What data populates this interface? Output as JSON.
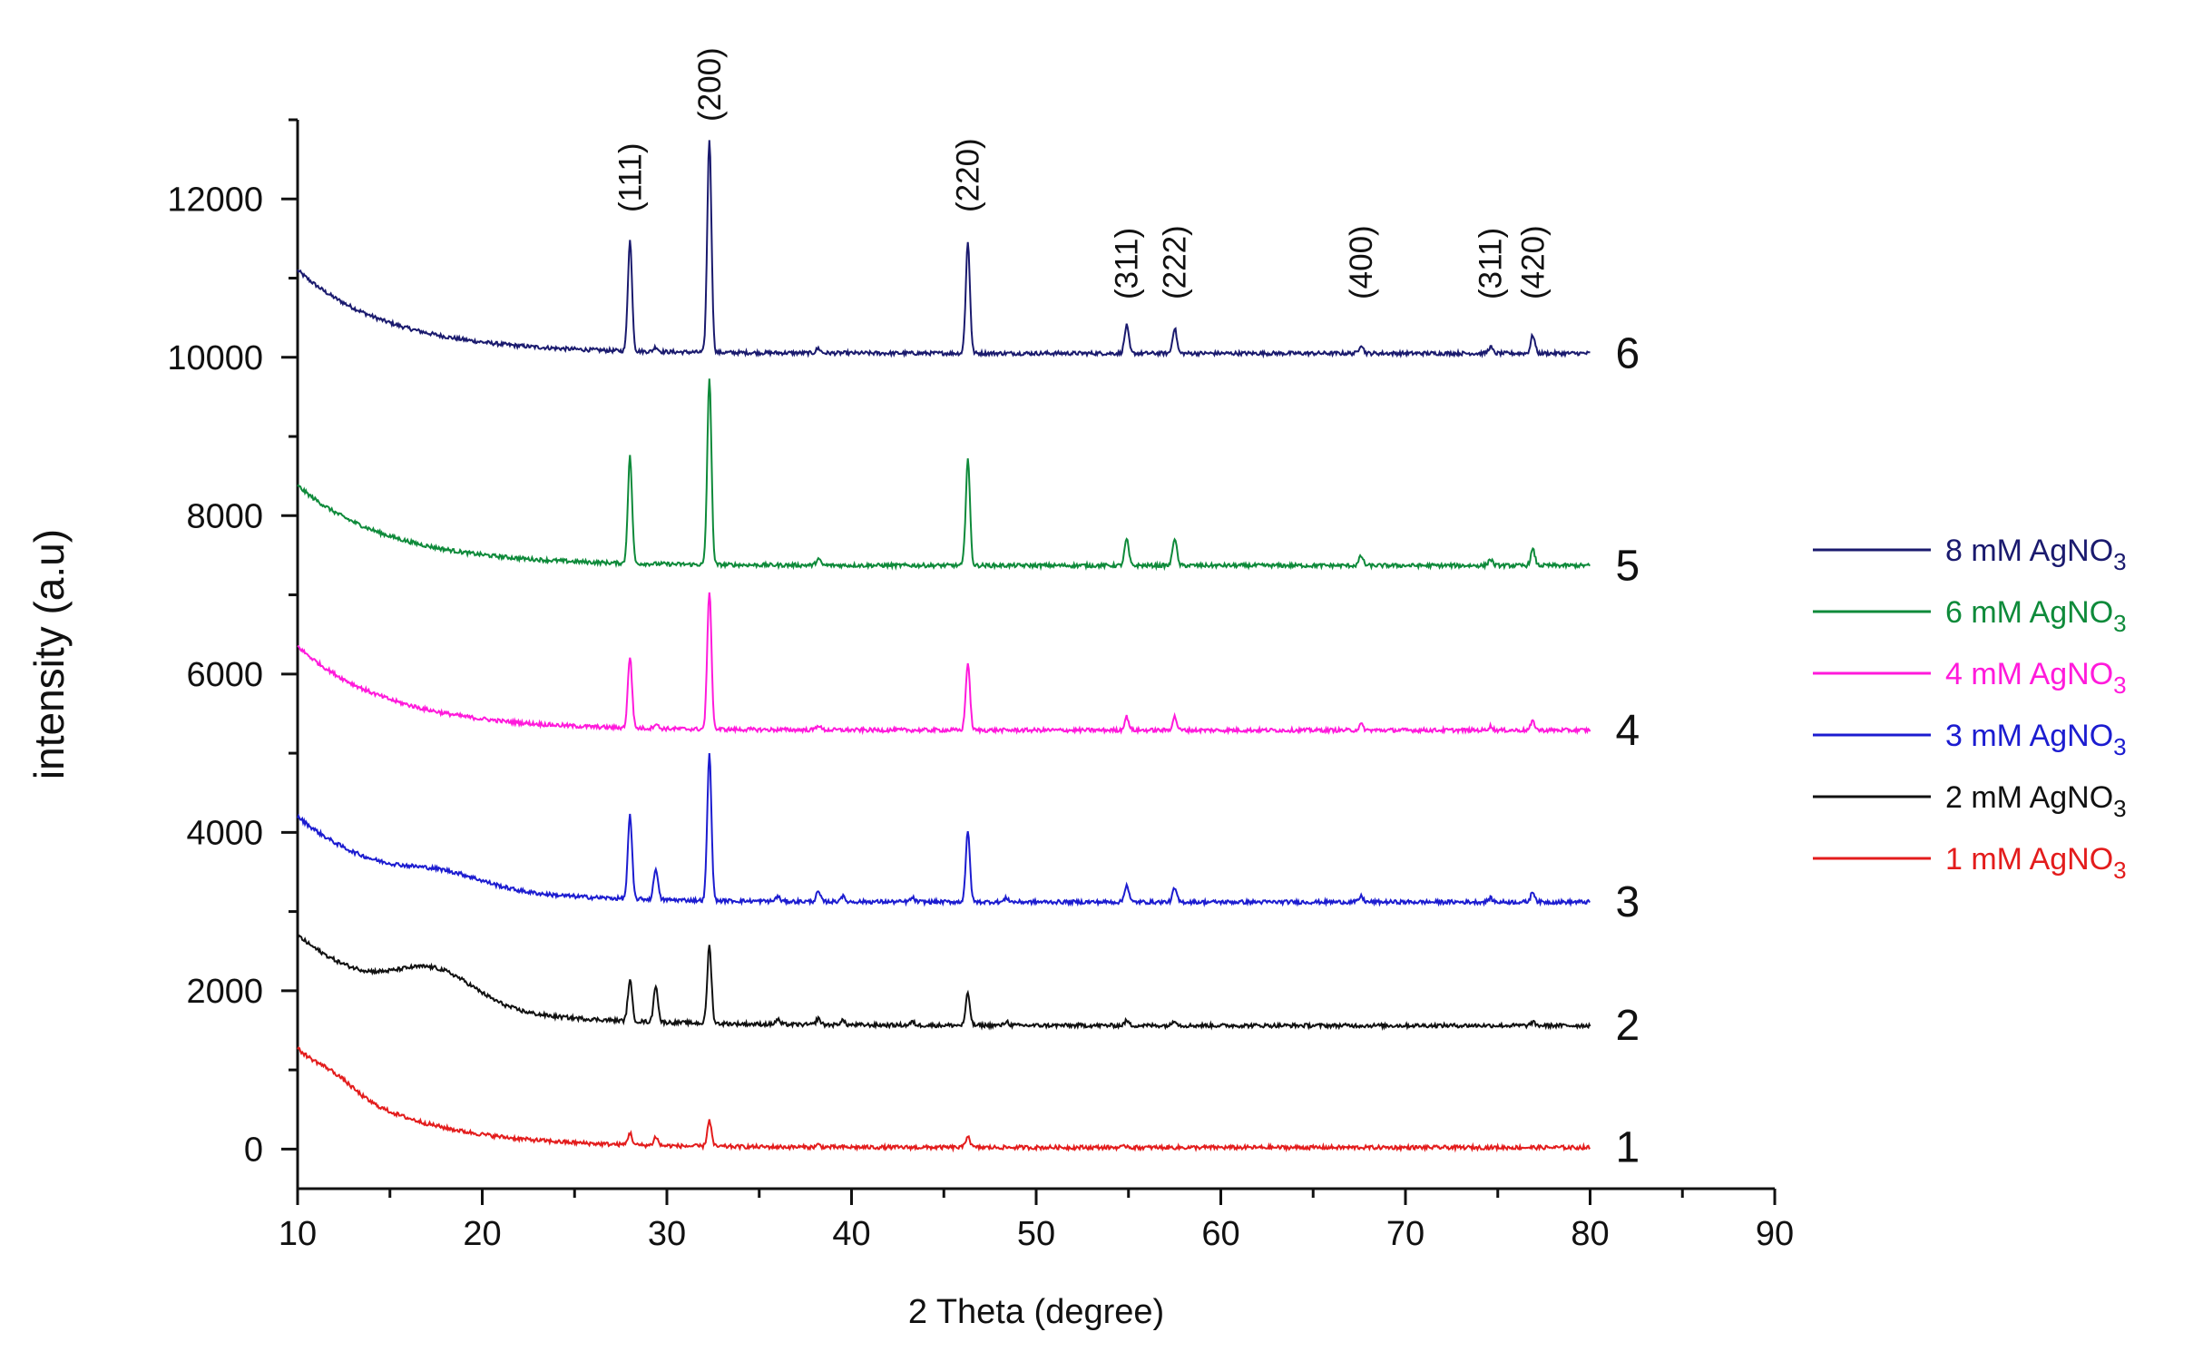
{
  "chart_data": {
    "type": "line",
    "title": "",
    "xlabel": "2 Theta (degree)",
    "ylabel": "intensity (a.u)",
    "xlim": [
      10,
      90
    ],
    "ylim": [
      -500,
      13000
    ],
    "x_ticks": [
      10,
      20,
      30,
      40,
      50,
      60,
      70,
      80,
      90
    ],
    "y_ticks": [
      0,
      2000,
      4000,
      6000,
      8000,
      10000,
      12000
    ],
    "grid": false,
    "legend_position": "right",
    "peak_labels": [
      {
        "text": "(111)",
        "x": 28.0
      },
      {
        "text": "(200)",
        "x": 32.3
      },
      {
        "text": "(220)",
        "x": 46.3
      },
      {
        "text": "(311)",
        "x": 54.9
      },
      {
        "text": "(222)",
        "x": 57.5
      },
      {
        "text": "(400)",
        "x": 67.6
      },
      {
        "text": "(311)",
        "x": 74.6
      },
      {
        "text": "(420)",
        "x": 76.9
      }
    ],
    "series": [
      {
        "name": "8 mM AgNO3",
        "legend_main": "8 mM AgNO",
        "legend_sub": "3",
        "curve_label": "6",
        "color": "#1a1a6e",
        "baseline": 10050,
        "start": 11100,
        "decay": 5.0,
        "peaks": [
          [
            28.0,
            1400
          ],
          [
            29.4,
            60
          ],
          [
            32.3,
            2700
          ],
          [
            38.2,
            60
          ],
          [
            46.3,
            1400
          ],
          [
            54.9,
            350
          ],
          [
            57.5,
            320
          ],
          [
            67.6,
            110
          ],
          [
            74.6,
            80
          ],
          [
            76.9,
            230
          ]
        ]
      },
      {
        "name": "6 mM AgNO3",
        "legend_main": "6 mM AgNO",
        "legend_sub": "3",
        "curve_label": "5",
        "color": "#0e8a3a",
        "baseline": 7370,
        "start": 8380,
        "decay": 5.0,
        "peaks": [
          [
            28.0,
            1350
          ],
          [
            32.3,
            2350
          ],
          [
            38.2,
            80
          ],
          [
            46.3,
            1350
          ],
          [
            54.9,
            330
          ],
          [
            57.5,
            350
          ],
          [
            67.6,
            120
          ],
          [
            74.6,
            80
          ],
          [
            76.9,
            200
          ]
        ]
      },
      {
        "name": "4 mM AgNO3",
        "legend_main": "4 mM AgNO",
        "legend_sub": "3",
        "curve_label": "4",
        "color": "#ff1adb",
        "baseline": 5290,
        "start": 6350,
        "decay": 5.0,
        "peaks": [
          [
            28.0,
            900
          ],
          [
            29.4,
            60
          ],
          [
            32.3,
            1750
          ],
          [
            38.2,
            60
          ],
          [
            46.3,
            850
          ],
          [
            54.9,
            170
          ],
          [
            57.5,
            170
          ],
          [
            67.6,
            70
          ],
          [
            74.6,
            50
          ],
          [
            76.9,
            110
          ]
        ]
      },
      {
        "name": "3 mM AgNO3",
        "legend_main": "3 mM AgNO",
        "legend_sub": "3",
        "curve_label": "3",
        "color": "#1c1cd0",
        "baseline": 3120,
        "start": 4200,
        "decay": 5.5,
        "hump": [
          18.0,
          150,
          3.0
        ],
        "peaks": [
          [
            28.0,
            1050
          ],
          [
            29.4,
            400
          ],
          [
            32.3,
            1850
          ],
          [
            36.0,
            60
          ],
          [
            38.2,
            120
          ],
          [
            39.5,
            70
          ],
          [
            43.3,
            50
          ],
          [
            46.3,
            880
          ],
          [
            48.4,
            50
          ],
          [
            54.9,
            220
          ],
          [
            57.5,
            170
          ],
          [
            67.6,
            70
          ],
          [
            74.6,
            50
          ],
          [
            76.9,
            130
          ]
        ]
      },
      {
        "name": "2 mM AgNO3",
        "legend_main": "2 mM AgNO",
        "legend_sub": "3",
        "curve_label": "2",
        "color": "#111111",
        "baseline": 1560,
        "start": 2700,
        "decay": 6.0,
        "hump": [
          17.5,
          400,
          3.0
        ],
        "peaks": [
          [
            28.0,
            520
          ],
          [
            29.4,
            470
          ],
          [
            32.3,
            980
          ],
          [
            36.0,
            60
          ],
          [
            38.2,
            80
          ],
          [
            39.5,
            60
          ],
          [
            43.3,
            40
          ],
          [
            46.3,
            400
          ],
          [
            48.4,
            50
          ],
          [
            54.9,
            60
          ],
          [
            57.5,
            70
          ],
          [
            76.9,
            40
          ]
        ]
      },
      {
        "name": "1 mM AgNO3",
        "legend_main": "1 mM AgNO",
        "legend_sub": "3",
        "curve_label": "1",
        "color": "#e31c1c",
        "baseline": 20,
        "start": 1250,
        "decay": 5.0,
        "hump": [
          12.0,
          120,
          1.5
        ],
        "peaks": [
          [
            28.0,
            150
          ],
          [
            29.4,
            110
          ],
          [
            32.3,
            330
          ],
          [
            38.2,
            30
          ],
          [
            46.3,
            150
          ],
          [
            54.9,
            20
          ]
        ]
      }
    ]
  }
}
